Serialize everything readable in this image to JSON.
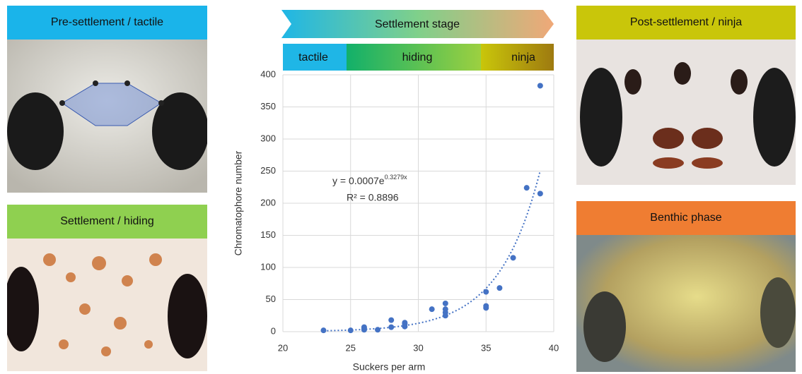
{
  "chart_data": {
    "type": "scatter",
    "banner": "Settlement stage",
    "stages": [
      "tactile",
      "hiding",
      "ninja"
    ],
    "x_label": "Suckers per arm",
    "y_label": "Chromatophore number",
    "x": [
      23,
      25,
      26,
      26,
      26,
      27,
      28,
      28,
      29,
      29,
      29,
      31,
      32,
      32,
      32,
      32,
      35,
      35,
      35,
      36,
      37,
      38,
      39,
      39
    ],
    "series": [
      {
        "name": "Chromatophore number",
        "color": "#4472c4",
        "values": [
          2,
          2,
          3,
          5,
          7,
          3,
          7,
          18,
          8,
          12,
          14,
          35,
          25,
          30,
          35,
          44,
          37,
          40,
          62,
          68,
          115,
          224,
          383,
          215
        ]
      }
    ],
    "trendline": {
      "a": 0.0007,
      "b": 0.3279,
      "equation": {
        "base": "y = 0.0007e",
        "exponent": "0.3279x"
      },
      "r_squared": "R² = 0.8896",
      "color": "#4472c4"
    },
    "xlim": [
      20,
      40
    ],
    "xticks": [
      20,
      25,
      30,
      35,
      40
    ],
    "ylim": [
      0,
      400
    ],
    "yticks": [
      0,
      50,
      100,
      150,
      200,
      250,
      300,
      350,
      400
    ],
    "grid": true
  },
  "panels": [
    {
      "label": "Pre-settlement / tactile",
      "color": "#1ab4ea"
    },
    {
      "label": "Settlement / hiding",
      "color": "#8fd050"
    },
    {
      "label": "Post-settlement / ninja",
      "color": "#c9c60a"
    },
    {
      "label": "Benthic phase",
      "color": "#ef7d32"
    }
  ]
}
